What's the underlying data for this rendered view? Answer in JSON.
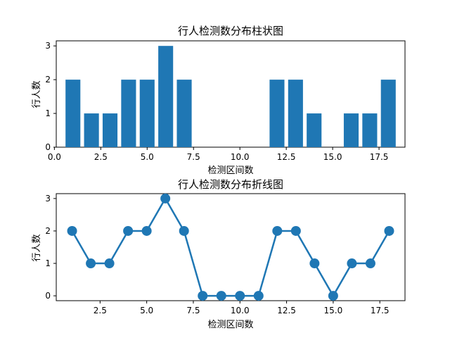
{
  "colors": {
    "series": "#1f77b4",
    "axis": "#000000",
    "background": "#ffffff"
  },
  "chart_data": [
    {
      "type": "bar",
      "title": "行人检测数分布柱状图",
      "xlabel": "检测区间数",
      "ylabel": "行人数",
      "x": [
        1,
        2,
        3,
        4,
        5,
        6,
        7,
        8,
        9,
        10,
        11,
        12,
        13,
        14,
        15,
        16,
        17,
        18
      ],
      "values": [
        2,
        1,
        1,
        2,
        2,
        3,
        2,
        0,
        0,
        0,
        0,
        2,
        2,
        1,
        0,
        1,
        1,
        2
      ],
      "xlim": [
        0.1,
        18.9
      ],
      "ylim": [
        0,
        3.15
      ],
      "xticks": [
        0.0,
        2.5,
        5.0,
        7.5,
        10.0,
        12.5,
        15.0,
        17.5
      ],
      "xtick_labels": [
        "0.0",
        "2.5",
        "5.0",
        "7.5",
        "10.0",
        "12.5",
        "15.0",
        "17.5"
      ],
      "yticks": [
        0,
        1,
        2,
        3
      ],
      "ytick_labels": [
        "0",
        "1",
        "2",
        "3"
      ],
      "grid": false,
      "legend": "none"
    },
    {
      "type": "line",
      "title": "行人检测数分布折线图",
      "xlabel": "检测区间数",
      "ylabel": "行人数",
      "x": [
        1,
        2,
        3,
        4,
        5,
        6,
        7,
        8,
        9,
        10,
        11,
        12,
        13,
        14,
        15,
        16,
        17,
        18
      ],
      "values": [
        2,
        1,
        1,
        2,
        2,
        3,
        2,
        0,
        0,
        0,
        0,
        2,
        2,
        1,
        0,
        1,
        1,
        2
      ],
      "markers": "circle",
      "xlim": [
        0.15,
        18.85
      ],
      "ylim": [
        -0.15,
        3.15
      ],
      "xticks": [
        2.5,
        5.0,
        7.5,
        10.0,
        12.5,
        15.0,
        17.5
      ],
      "xtick_labels": [
        "2.5",
        "5.0",
        "7.5",
        "10.0",
        "12.5",
        "15.0",
        "17.5"
      ],
      "yticks": [
        0,
        1,
        2,
        3
      ],
      "ytick_labels": [
        "0",
        "1",
        "2",
        "3"
      ],
      "grid": false,
      "legend": "none"
    }
  ]
}
